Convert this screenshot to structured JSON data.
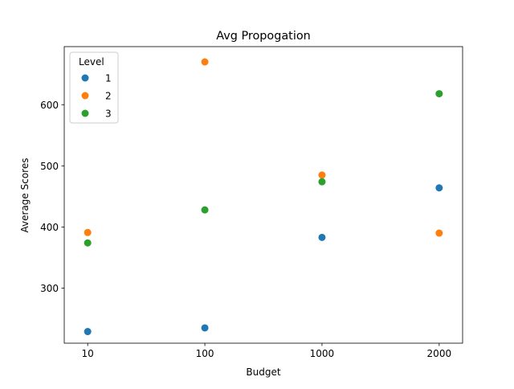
{
  "chart_data": {
    "type": "scatter",
    "title": "Avg Propogation",
    "xlabel": "Budget",
    "ylabel": "Average Scores",
    "categories": [
      "10",
      "100",
      "1000",
      "2000"
    ],
    "x_scale": "categorical",
    "ylim": [
      210,
      695
    ],
    "yticks": [
      300,
      400,
      500,
      600
    ],
    "grid": false,
    "legend": {
      "title": "Level",
      "placement": "top-left"
    },
    "series": [
      {
        "name": "1",
        "color": "#1f77b4",
        "values": [
          229,
          235,
          383,
          464
        ]
      },
      {
        "name": "2",
        "color": "#ff7f0e",
        "values": [
          391,
          670,
          485,
          390
        ]
      },
      {
        "name": "3",
        "color": "#2ca02c",
        "values": [
          374,
          428,
          474,
          618
        ]
      }
    ]
  }
}
